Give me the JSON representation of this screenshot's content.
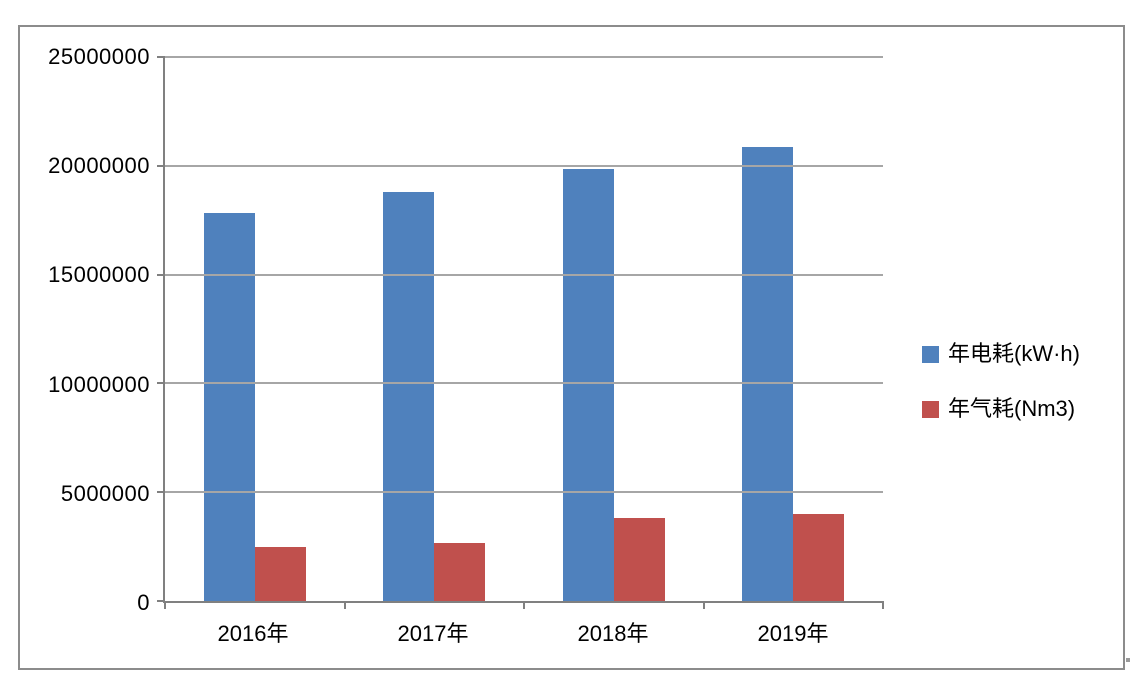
{
  "chart_data": {
    "type": "bar",
    "title": "",
    "categories": [
      "2016年",
      "2017年",
      "2018年",
      "2019年"
    ],
    "series": [
      {
        "name": "年电耗(kW·h)",
        "color": "#4F81BD",
        "values": [
          17850000,
          18800000,
          19850000,
          20850000
        ]
      },
      {
        "name": "年气耗(Nm3)",
        "color": "#C0504D",
        "values": [
          2500000,
          2650000,
          3800000,
          4000000
        ]
      }
    ],
    "xlabel": "",
    "ylabel": "",
    "ylim": [
      0,
      25000000
    ],
    "ytick_interval": 5000000,
    "ytick_labels": [
      "0",
      "5000000",
      "10000000",
      "15000000",
      "20000000",
      "25000000"
    ],
    "grid": "horizontal",
    "legend_position": "right",
    "axis_color": "#808080",
    "gridline_color": "#A6A6A6",
    "frame_border_color": "#8C8C8C",
    "background_color": "#FFFFFF",
    "text_color": "#000000"
  }
}
